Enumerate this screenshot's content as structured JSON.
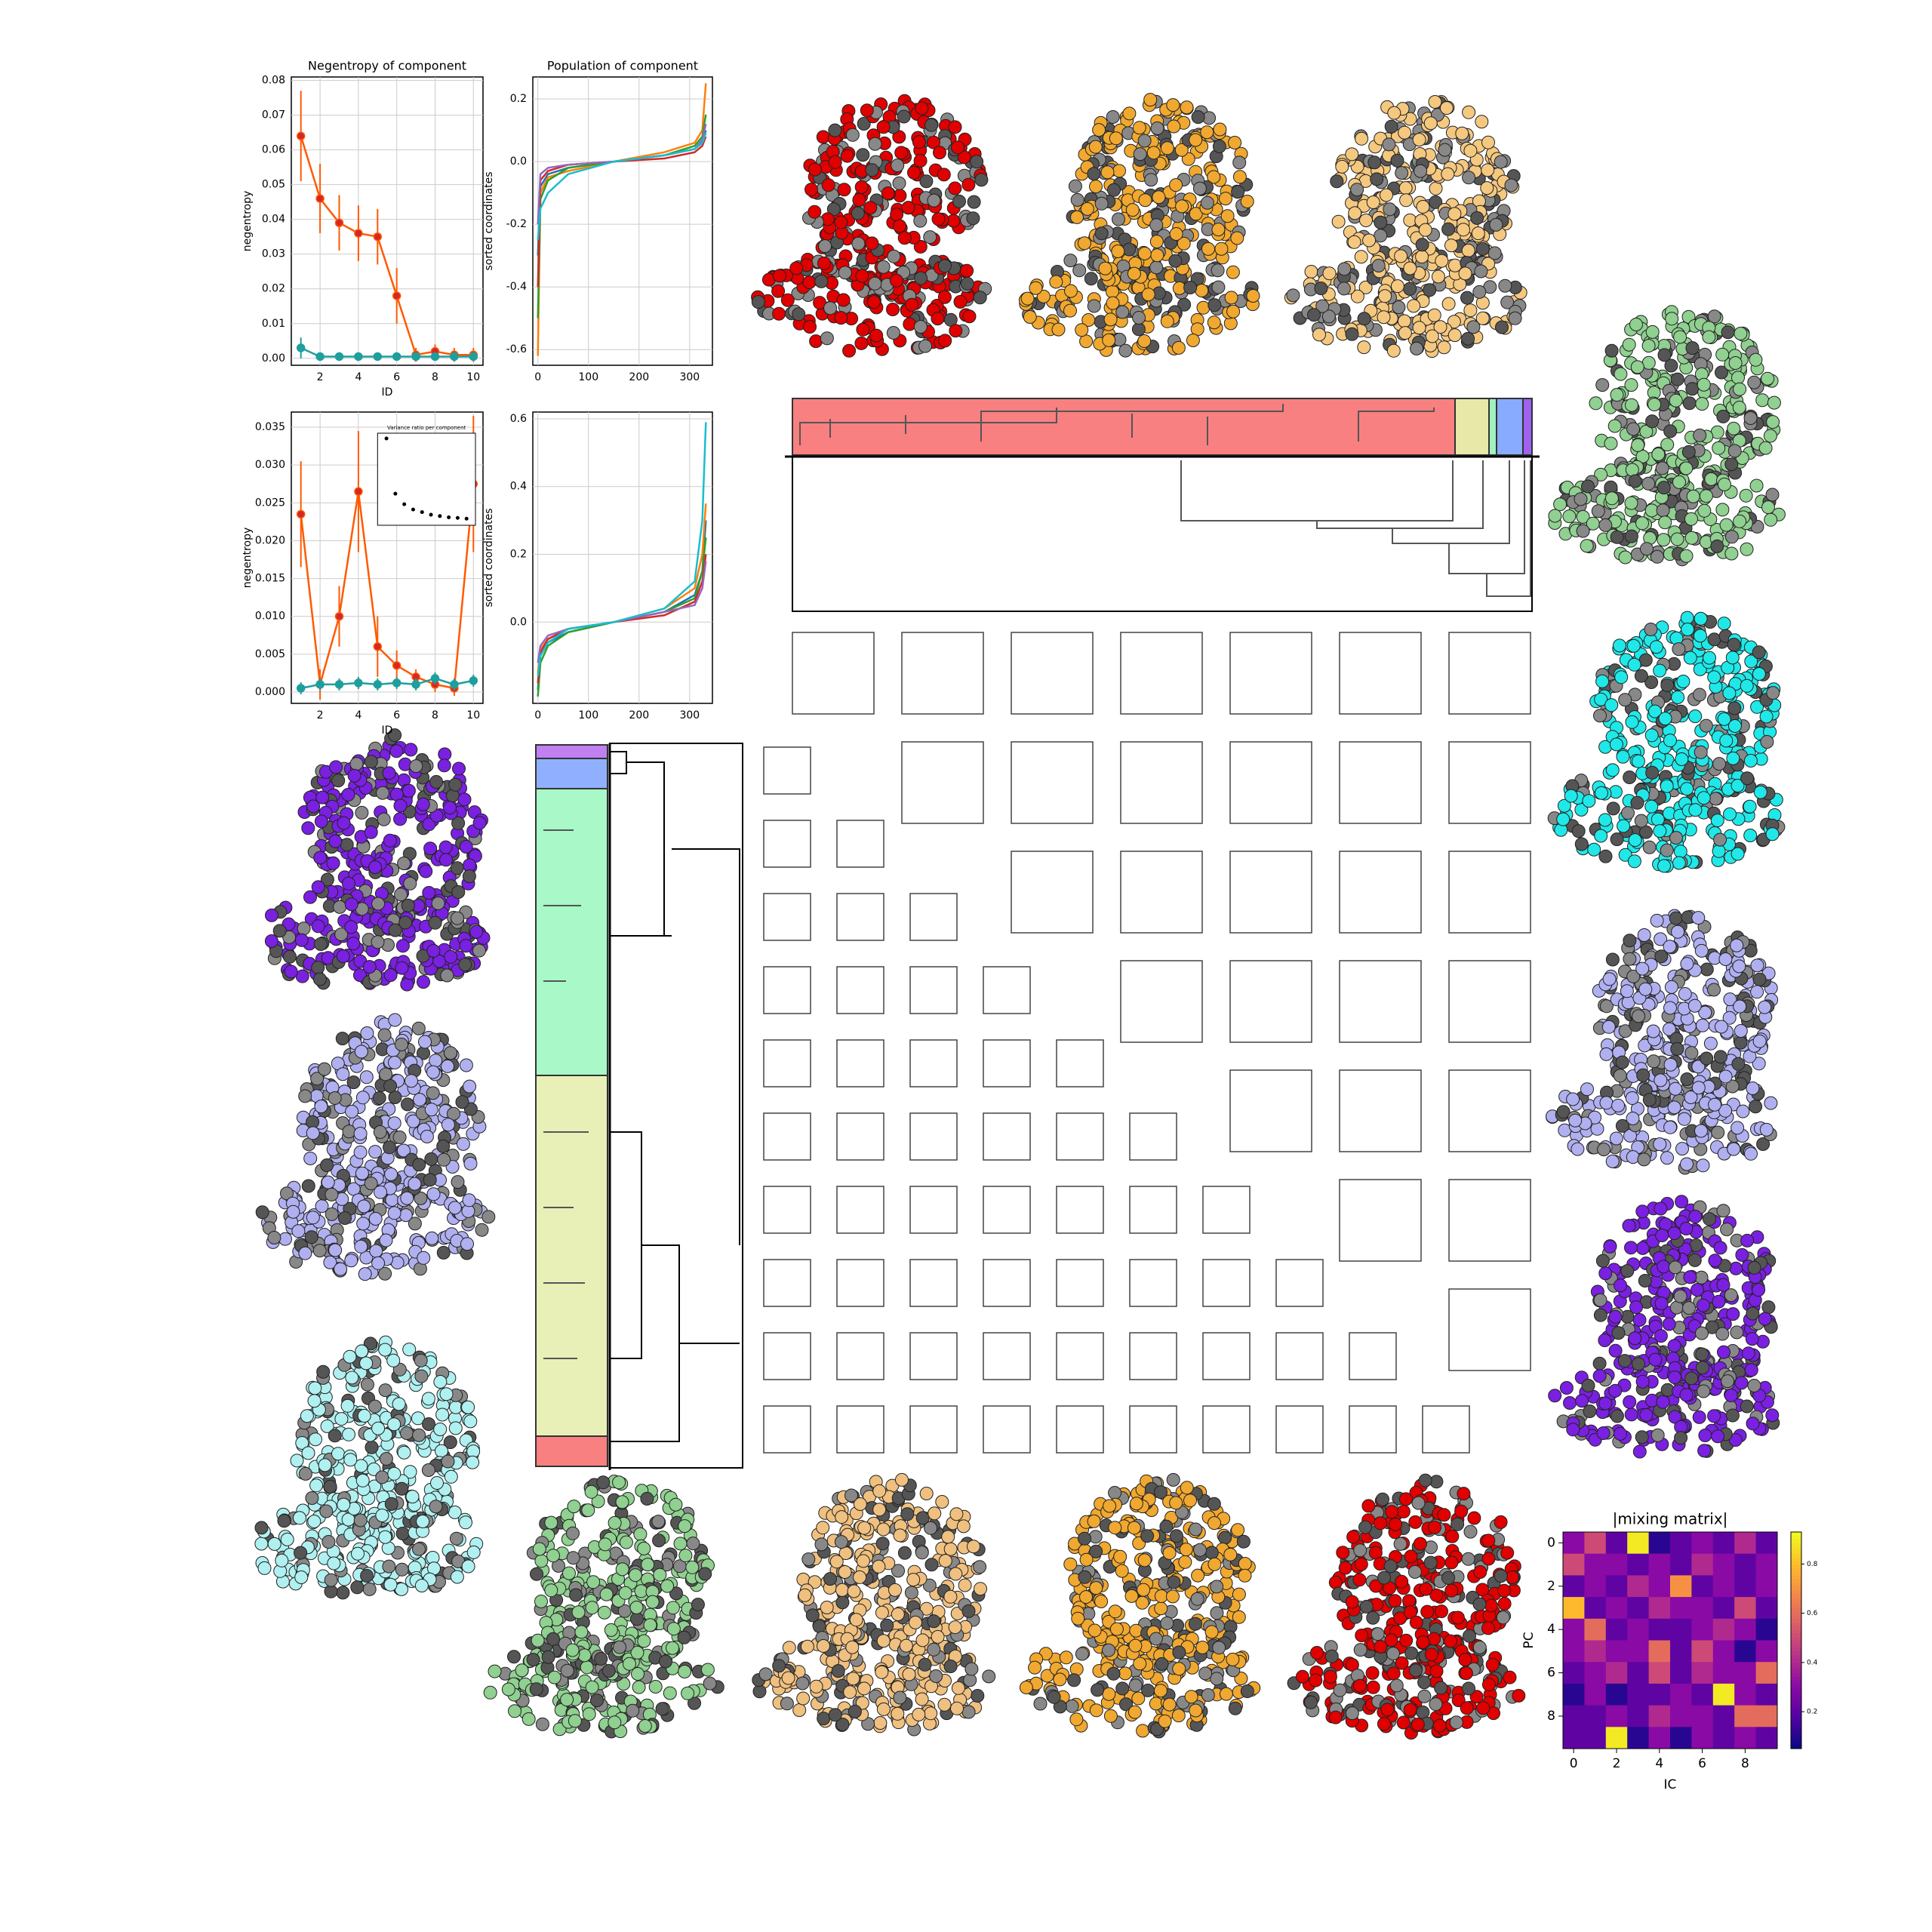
{
  "chart_data": [
    {
      "type": "line",
      "title": "Negentropy of component",
      "xlabel": "ID",
      "ylabel": "negentropy",
      "x": [
        1,
        2,
        3,
        4,
        5,
        6,
        7,
        8,
        9,
        10
      ],
      "xlim": [
        0.5,
        10.5
      ],
      "xticks": [
        2,
        4,
        6,
        8,
        10
      ],
      "ylim": [
        -0.002,
        0.081
      ],
      "yticks": [
        {
          "value": 0,
          "label": "0.00"
        },
        0.01,
        0.02,
        0.03,
        0.04,
        0.05,
        0.06,
        0.07,
        0.08
      ],
      "grid": true,
      "series": [
        {
          "color": "#ff5a00",
          "values": [
            0.064,
            0.046,
            0.039,
            0.036,
            0.035,
            0.018,
            0.001,
            0.002,
            0.001,
            0.001
          ],
          "errors": [
            0.013,
            0.01,
            0.008,
            0.008,
            0.008,
            0.008,
            0.002,
            0.002,
            0.002,
            0.002
          ]
        },
        {
          "color": "#1f9e9e",
          "values": [
            0.003,
            0.0005,
            0.0005,
            0.0005,
            0.0005,
            0.0005,
            0.0005,
            0.0005,
            0.0005,
            0.0005
          ],
          "errors": [
            0.003,
            0.001,
            0.001,
            0.001,
            0.001,
            0.001,
            0.001,
            0.001,
            0.001,
            0.001
          ]
        }
      ]
    },
    {
      "type": "line",
      "title": "Population of component",
      "ylabel": "sorted coordinates",
      "x": [
        0,
        5,
        20,
        60,
        150,
        250,
        310,
        325,
        332
      ],
      "xlim": [
        -10,
        345
      ],
      "xticks": [
        0,
        100,
        200,
        300
      ],
      "ylim": [
        -0.65,
        0.27
      ],
      "yticks": [
        -0.6,
        -0.4,
        -0.2,
        {
          "value": 0,
          "label": "0.0"
        },
        0.2
      ],
      "grid": true,
      "series": [
        {
          "color": "#1f77b4",
          "values": [
            -0.3,
            -0.08,
            -0.04,
            -0.02,
            0.0,
            0.02,
            0.04,
            0.06,
            0.1
          ]
        },
        {
          "color": "#ff7f0e",
          "values": [
            -0.62,
            -0.1,
            -0.05,
            -0.03,
            0.0,
            0.03,
            0.06,
            0.1,
            0.25
          ]
        },
        {
          "color": "#2ca02c",
          "values": [
            -0.5,
            -0.12,
            -0.06,
            -0.02,
            0.0,
            0.02,
            0.05,
            0.08,
            0.15
          ]
        },
        {
          "color": "#d62728",
          "values": [
            -0.4,
            -0.06,
            -0.03,
            -0.01,
            0.0,
            0.01,
            0.03,
            0.05,
            0.08
          ]
        },
        {
          "color": "#9467bd",
          "values": [
            -0.2,
            -0.04,
            -0.02,
            -0.01,
            0.0,
            0.02,
            0.04,
            0.07,
            0.12
          ]
        },
        {
          "color": "#17becf",
          "values": [
            -0.25,
            -0.15,
            -0.1,
            -0.04,
            0.0,
            0.02,
            0.04,
            0.06,
            0.09
          ]
        }
      ]
    },
    {
      "type": "line",
      "xlabel": "ID",
      "ylabel": "negentropy",
      "x": [
        1,
        2,
        3,
        4,
        5,
        6,
        7,
        8,
        9,
        10
      ],
      "xlim": [
        0.5,
        10.5
      ],
      "xticks": [
        2,
        4,
        6,
        8,
        10
      ],
      "ylim": [
        -0.0015,
        0.037
      ],
      "yticks": [
        {
          "value": 0,
          "label": "0.000"
        },
        0.005,
        {
          "value": 0.01,
          "label": "0.010"
        },
        0.015,
        {
          "value": 0.02,
          "label": "0.020"
        },
        0.025,
        {
          "value": 0.03,
          "label": "0.030"
        },
        0.035
      ],
      "grid": true,
      "series": [
        {
          "color": "#ff5a00",
          "values": [
            0.0235,
            0.001,
            0.01,
            0.0265,
            0.006,
            0.0035,
            0.002,
            0.001,
            0.0005,
            0.0275
          ],
          "errors": [
            0.007,
            0.002,
            0.004,
            0.008,
            0.004,
            0.002,
            0.001,
            0.001,
            0.001,
            0.009
          ]
        },
        {
          "color": "#1f9e9e",
          "values": [
            0.0005,
            0.001,
            0.001,
            0.0012,
            0.001,
            0.0012,
            0.001,
            0.0018,
            0.001,
            0.0015
          ],
          "errors": [
            0.0008,
            0.0008,
            0.0008,
            0.0008,
            0.0008,
            0.0008,
            0.0008,
            0.0008,
            0.0008,
            0.0008
          ]
        }
      ],
      "inset": {
        "title": "Variance ratio per component",
        "x": [
          1,
          2,
          3,
          4,
          5,
          6,
          7,
          8,
          9,
          10
        ],
        "xlim": [
          0,
          11
        ],
        "ylim": [
          0,
          0.35
        ],
        "values": [
          0.33,
          0.12,
          0.08,
          0.06,
          0.05,
          0.04,
          0.035,
          0.03,
          0.028,
          0.025
        ]
      }
    },
    {
      "type": "line",
      "ylabel": "sorted coordinates",
      "x": [
        0,
        5,
        20,
        60,
        150,
        250,
        310,
        325,
        332
      ],
      "xlim": [
        -10,
        345
      ],
      "xticks": [
        0,
        100,
        200,
        300
      ],
      "ylim": [
        -0.24,
        0.62
      ],
      "yticks": [
        {
          "value": 0,
          "label": "0.0"
        },
        0.2,
        0.4,
        0.6
      ],
      "grid": true,
      "series": [
        {
          "color": "#1f77b4",
          "values": [
            -0.2,
            -0.1,
            -0.06,
            -0.03,
            0.0,
            0.03,
            0.08,
            0.15,
            0.3
          ]
        },
        {
          "color": "#ff7f0e",
          "values": [
            -0.15,
            -0.08,
            -0.05,
            -0.02,
            0.0,
            0.04,
            0.1,
            0.2,
            0.35
          ]
        },
        {
          "color": "#2ca02c",
          "values": [
            -0.22,
            -0.12,
            -0.07,
            -0.03,
            0.0,
            0.03,
            0.07,
            0.15,
            0.25
          ]
        },
        {
          "color": "#d62728",
          "values": [
            -0.18,
            -0.09,
            -0.05,
            -0.02,
            0.0,
            0.02,
            0.06,
            0.12,
            0.2
          ]
        },
        {
          "color": "#9467bd",
          "values": [
            -0.12,
            -0.07,
            -0.04,
            -0.02,
            0.0,
            0.03,
            0.05,
            0.1,
            0.18
          ]
        },
        {
          "color": "#17becf",
          "values": [
            -0.16,
            -0.1,
            -0.06,
            -0.02,
            0.0,
            0.04,
            0.12,
            0.3,
            0.59
          ]
        }
      ]
    },
    {
      "type": "heatmap",
      "title": "|mixing matrix|",
      "xlabel": "IC",
      "ylabel": "PC",
      "xticks": [
        0,
        2,
        4,
        6,
        8
      ],
      "yticks": [
        0,
        2,
        4,
        6,
        8
      ],
      "clim": [
        0.05,
        0.93
      ],
      "cticks": [
        0.2,
        0.4,
        0.6,
        0.8
      ],
      "values": [
        [
          0.3,
          0.5,
          0.2,
          0.9,
          0.1,
          0.2,
          0.3,
          0.2,
          0.4,
          0.2
        ],
        [
          0.5,
          0.3,
          0.3,
          0.2,
          0.3,
          0.2,
          0.4,
          0.3,
          0.2,
          0.3
        ],
        [
          0.2,
          0.3,
          0.2,
          0.4,
          0.3,
          0.7,
          0.2,
          0.3,
          0.2,
          0.3
        ],
        [
          0.8,
          0.2,
          0.3,
          0.2,
          0.4,
          0.3,
          0.3,
          0.2,
          0.5,
          0.2
        ],
        [
          0.3,
          0.6,
          0.2,
          0.3,
          0.2,
          0.2,
          0.3,
          0.4,
          0.3,
          0.1
        ],
        [
          0.3,
          0.4,
          0.3,
          0.3,
          0.6,
          0.2,
          0.5,
          0.3,
          0.1,
          0.3
        ],
        [
          0.2,
          0.3,
          0.4,
          0.2,
          0.5,
          0.2,
          0.4,
          0.3,
          0.3,
          0.6
        ],
        [
          0.1,
          0.3,
          0.1,
          0.2,
          0.2,
          0.3,
          0.2,
          0.9,
          0.3,
          0.2
        ],
        [
          0.2,
          0.2,
          0.3,
          0.2,
          0.4,
          0.3,
          0.3,
          0.2,
          0.6,
          0.6
        ],
        [
          0.2,
          0.2,
          0.9,
          0.1,
          0.3,
          0.1,
          0.3,
          0.2,
          0.3,
          0.2
        ]
      ]
    }
  ]
}
